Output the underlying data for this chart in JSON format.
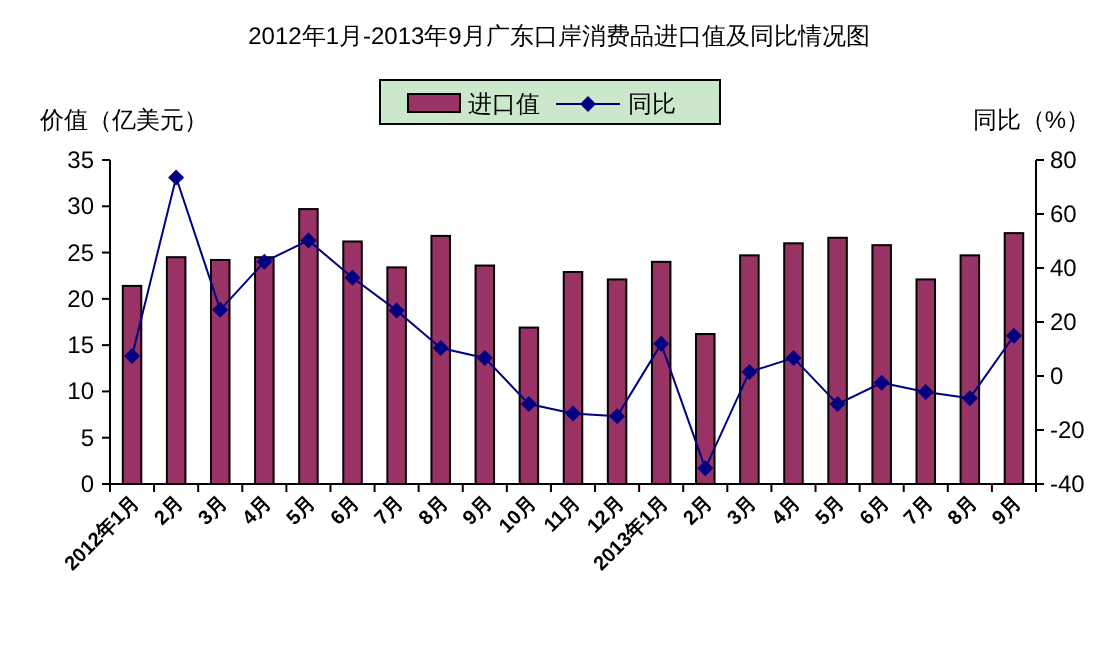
{
  "chart_data": {
    "type": "bar",
    "title": "2012年1月-2013年9月广东口岸消费品进口值及同比情况图",
    "ylabel": "价值（亿美元）",
    "y2label": "同比（%）",
    "categories": [
      "2012年1月",
      "2月",
      "3月",
      "4月",
      "5月",
      "6月",
      "7月",
      "8月",
      "9月",
      "10月",
      "11月",
      "12月",
      "2013年1月",
      "2月",
      "3月",
      "4月",
      "5月",
      "6月",
      "7月",
      "8月",
      "9月"
    ],
    "series": [
      {
        "name": "进口值",
        "color": "#993366",
        "values": [
          21.4,
          24.5,
          24.2,
          24.5,
          29.7,
          26.2,
          23.4,
          26.8,
          23.6,
          16.9,
          22.9,
          22.1,
          24.0,
          16.2,
          24.7,
          26.0,
          26.6,
          25.8,
          22.1,
          24.7,
          27.1
        ]
      },
      {
        "name": "同比",
        "type": "line",
        "axis": "y2",
        "color": "#000080",
        "marker": "diamond",
        "values": [
          7.4,
          73.5,
          24.5,
          42.3,
          50.2,
          36.4,
          24.3,
          10.4,
          6.7,
          -10.4,
          -13.9,
          -14.9,
          11.9,
          -34.2,
          1.5,
          6.7,
          -10.4,
          -2.5,
          -5.9,
          -8.2,
          14.9
        ]
      }
    ],
    "ylim": [
      0,
      35
    ],
    "yticks": [
      0,
      5,
      10,
      15,
      20,
      25,
      30,
      35
    ],
    "y2lim": [
      -40,
      80
    ],
    "y2ticks": [
      -40,
      -20,
      0,
      20,
      40,
      60,
      80
    ],
    "legend": "top",
    "grid": false
  }
}
